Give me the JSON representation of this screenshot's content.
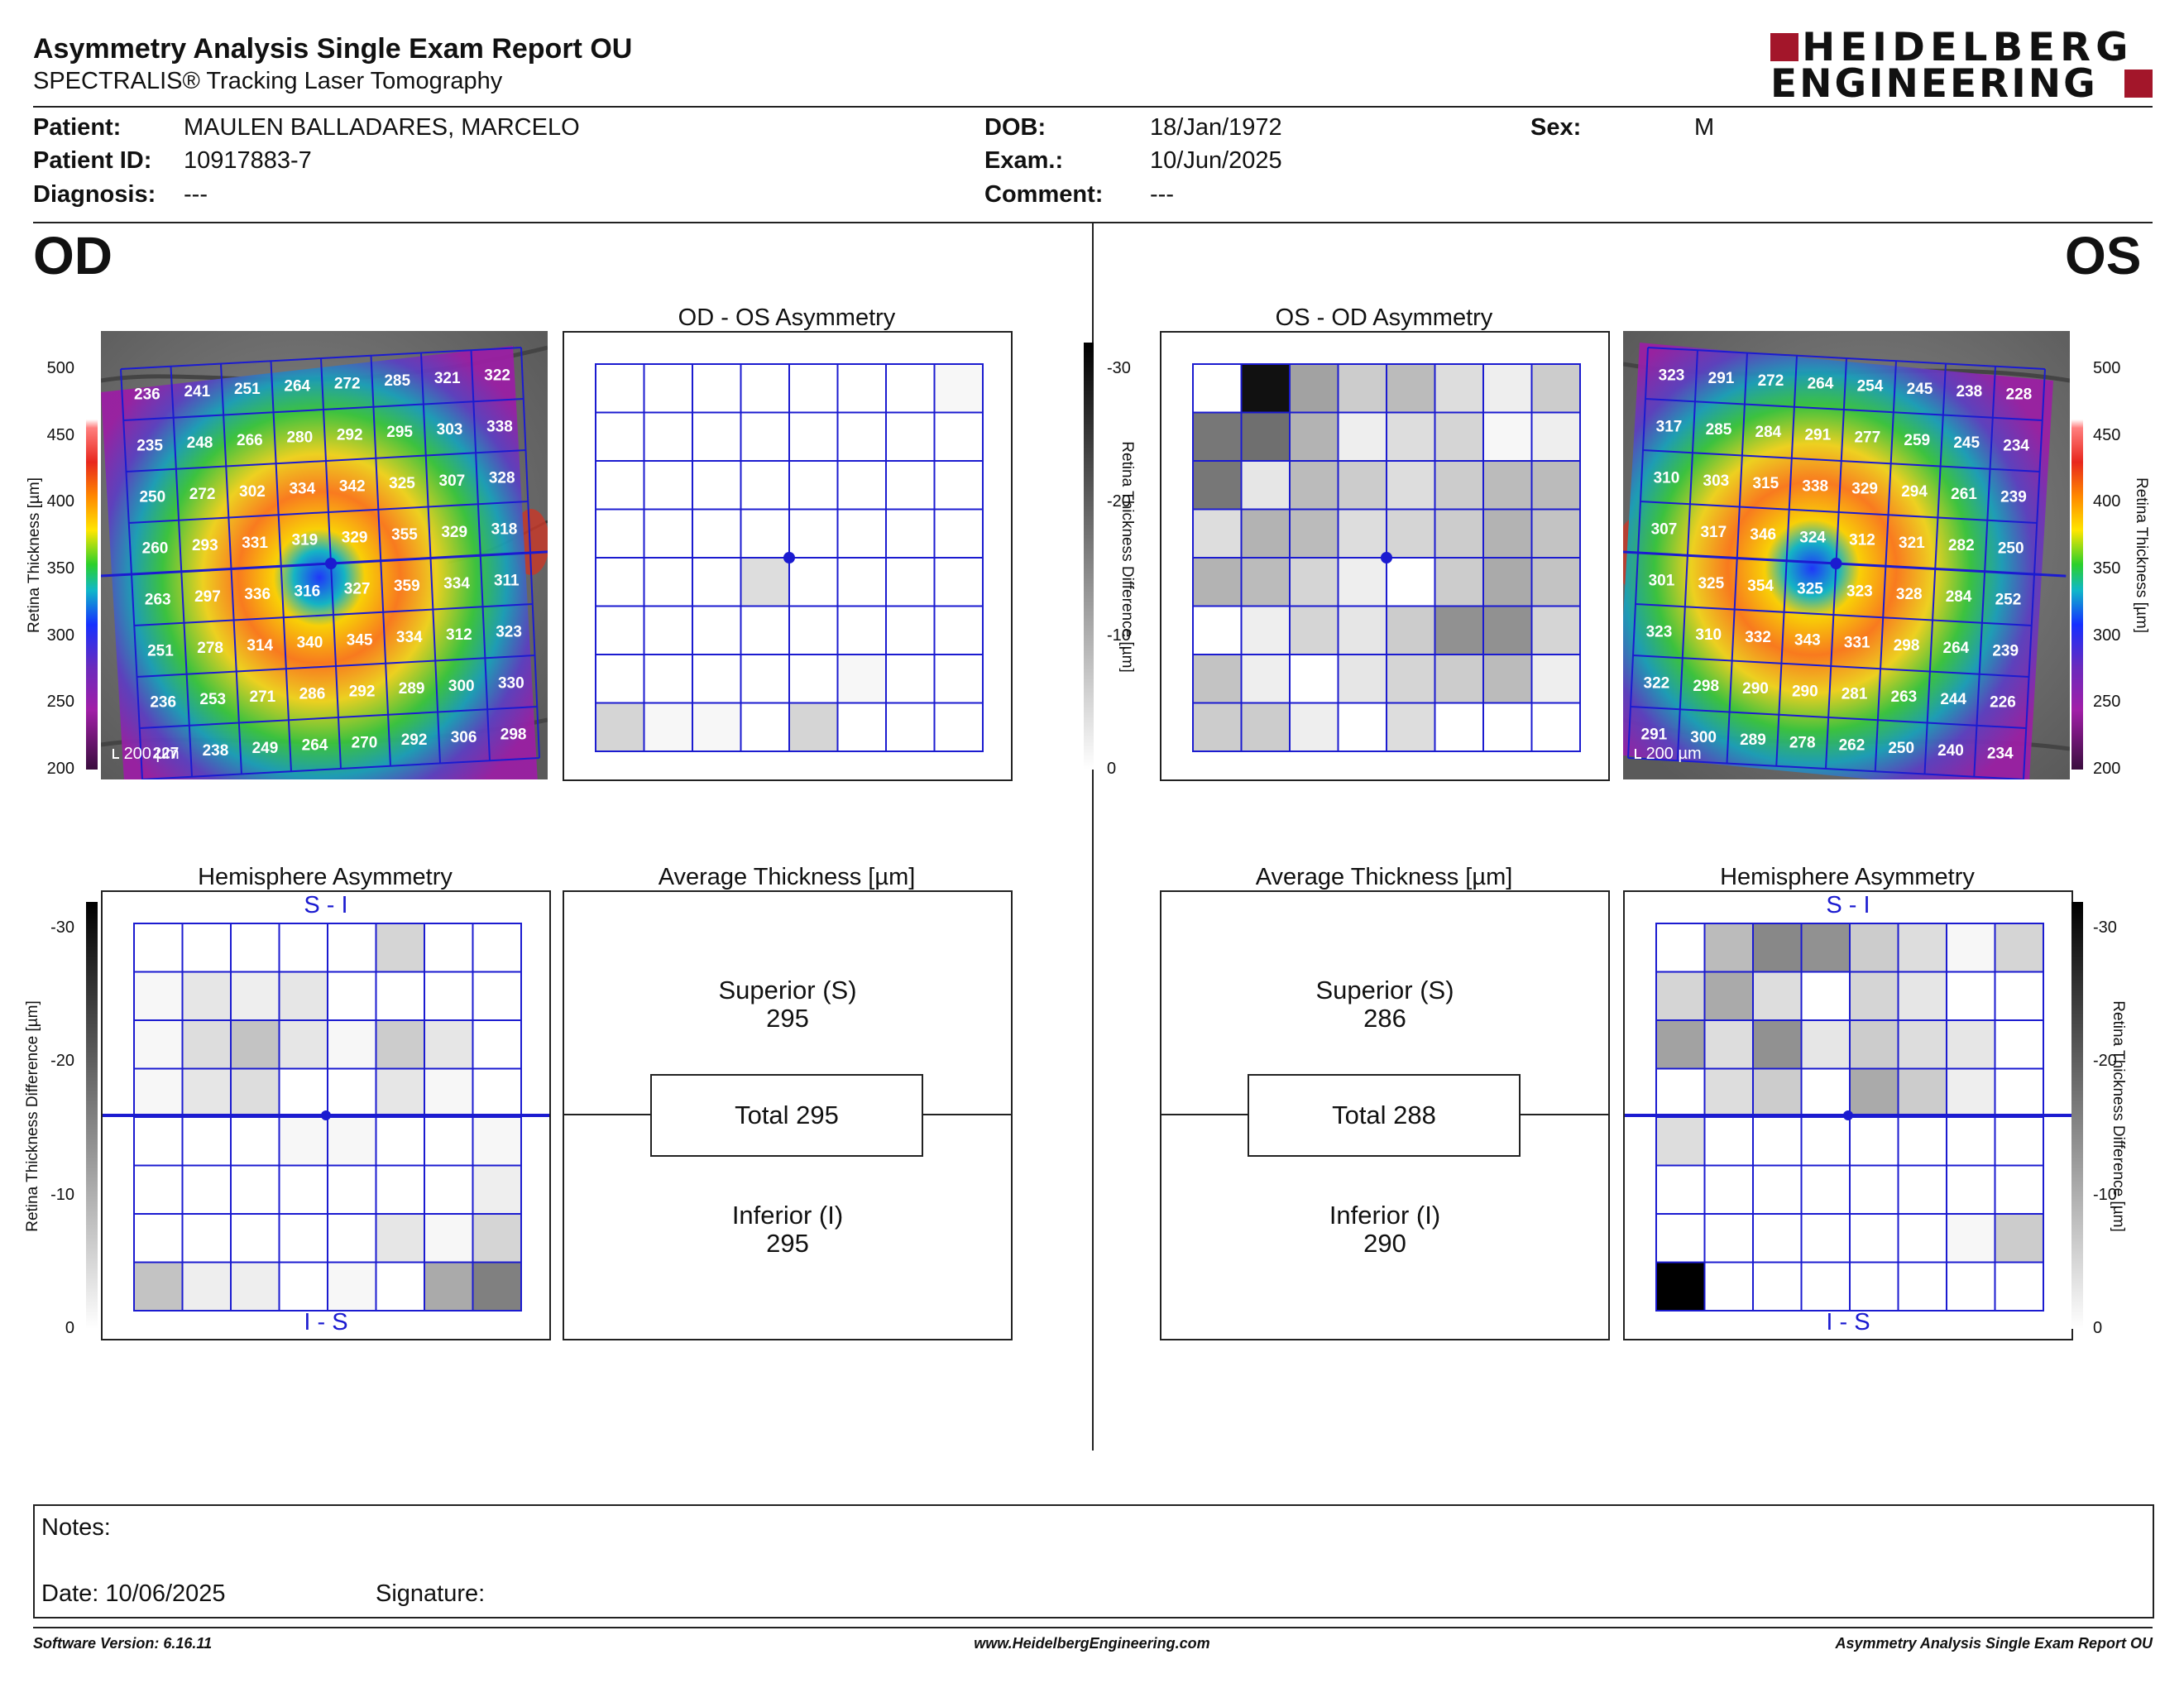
{
  "header": {
    "title": "Asymmetry Analysis Single Exam Report OU",
    "subtitle": "SPECTRALIS® Tracking Laser Tomography",
    "logo_line1": "HEIDELBERG",
    "logo_line2": "ENGINEERING",
    "brand_color": "#a3162a"
  },
  "patient": {
    "patient_label": "Patient:",
    "patient_value": "MAULEN BALLADARES, MARCELO",
    "id_label": "Patient ID:",
    "id_value": "10917883-7",
    "diagnosis_label": "Diagnosis:",
    "diagnosis_value": "---",
    "dob_label": "DOB:",
    "dob_value": "18/Jan/1972",
    "exam_label": "Exam.:",
    "exam_value": "10/Jun/2025",
    "comment_label": "Comment:",
    "comment_value": "---",
    "sex_label": "Sex:",
    "sex_value": "M"
  },
  "od": {
    "eye_label": "OD",
    "asym_title": "OD - OS Asymmetry",
    "hemi_title": "Hemisphere Asymmetry",
    "avg_title": "Average Thickness [µm]",
    "hemi_top": "S - I",
    "hemi_bottom": "I - S",
    "superior_label": "Superior (S)",
    "superior_value": "295",
    "total_label": "Total 295",
    "inferior_label": "Inferior (I)",
    "inferior_value": "295",
    "scale_bar": "200 µm",
    "thickness_grid": [
      [
        236,
        241,
        251,
        264,
        272,
        285,
        321,
        322
      ],
      [
        235,
        248,
        266,
        280,
        292,
        295,
        303,
        338
      ],
      [
        250,
        272,
        302,
        334,
        342,
        325,
        307,
        328
      ],
      [
        260,
        293,
        331,
        319,
        329,
        355,
        329,
        318
      ],
      [
        263,
        297,
        336,
        316,
        327,
        359,
        334,
        311
      ],
      [
        251,
        278,
        314,
        340,
        345,
        334,
        312,
        323
      ],
      [
        236,
        253,
        271,
        286,
        292,
        289,
        300,
        330
      ],
      [
        227,
        238,
        249,
        264,
        270,
        292,
        306,
        298
      ]
    ],
    "asym_grid": [
      [
        0,
        0,
        0,
        0,
        0,
        0,
        0,
        1
      ],
      [
        0,
        0,
        0,
        0,
        0,
        0,
        0,
        0
      ],
      [
        0,
        0,
        0,
        0,
        0,
        0,
        0,
        0
      ],
      [
        0,
        0,
        0,
        0,
        0,
        0,
        0,
        0
      ],
      [
        0,
        0,
        0,
        4,
        0,
        0,
        0,
        0
      ],
      [
        0,
        0,
        0,
        0,
        0,
        0,
        0,
        0
      ],
      [
        0,
        0,
        0,
        0,
        0,
        1,
        0,
        0
      ],
      [
        5,
        1,
        1,
        0,
        5,
        0,
        0,
        0
      ]
    ],
    "hemi_grid": [
      [
        0,
        0,
        0,
        0,
        0,
        5,
        0,
        0
      ],
      [
        1,
        3,
        2,
        3,
        0,
        0,
        0,
        0
      ],
      [
        1,
        4,
        7,
        3,
        1,
        6,
        3,
        0
      ],
      [
        1,
        3,
        4,
        0,
        0,
        3,
        1,
        0
      ],
      [
        0,
        0,
        0,
        1,
        1,
        0,
        0,
        1
      ],
      [
        0,
        0,
        0,
        0,
        0,
        0,
        0,
        2
      ],
      [
        0,
        0,
        0,
        0,
        0,
        3,
        1,
        5
      ],
      [
        7,
        2,
        2,
        0,
        1,
        0,
        10,
        15
      ]
    ]
  },
  "os": {
    "eye_label": "OS",
    "asym_title": "OS - OD Asymmetry",
    "hemi_title": "Hemisphere Asymmetry",
    "avg_title": "Average Thickness [µm]",
    "hemi_top": "S - I",
    "hemi_bottom": "I - S",
    "superior_label": "Superior (S)",
    "superior_value": "286",
    "total_label": "Total 288",
    "inferior_label": "Inferior (I)",
    "inferior_value": "290",
    "scale_bar": "200 µm",
    "thickness_grid": [
      [
        323,
        291,
        272,
        264,
        254,
        245,
        238,
        228
      ],
      [
        317,
        285,
        284,
        291,
        277,
        259,
        245,
        234
      ],
      [
        310,
        303,
        315,
        338,
        329,
        294,
        261,
        239
      ],
      [
        307,
        317,
        346,
        324,
        312,
        321,
        282,
        250
      ],
      [
        301,
        325,
        354,
        325,
        323,
        328,
        284,
        252
      ],
      [
        323,
        310,
        332,
        343,
        331,
        298,
        264,
        239
      ],
      [
        322,
        298,
        290,
        290,
        281,
        263,
        244,
        226
      ],
      [
        291,
        300,
        289,
        278,
        262,
        250,
        240,
        234
      ]
    ],
    "asym_grid": [
      [
        0,
        28,
        11,
        6,
        8,
        4,
        2,
        6
      ],
      [
        16,
        17,
        9,
        2,
        4,
        5,
        1,
        2
      ],
      [
        16,
        3,
        8,
        6,
        4,
        6,
        8,
        8
      ],
      [
        4,
        9,
        8,
        4,
        5,
        6,
        9,
        7
      ],
      [
        9,
        8,
        5,
        2,
        0,
        6,
        10,
        7
      ],
      [
        0,
        2,
        5,
        3,
        6,
        13,
        13,
        5
      ],
      [
        7,
        2,
        0,
        3,
        5,
        6,
        8,
        2
      ],
      [
        6,
        6,
        2,
        0,
        4,
        0,
        0,
        0
      ]
    ],
    "hemi_grid": [
      [
        0,
        8,
        14,
        13,
        6,
        4,
        1,
        5
      ],
      [
        5,
        10,
        4,
        0,
        5,
        3,
        0,
        0
      ],
      [
        11,
        4,
        13,
        3,
        6,
        4,
        3,
        0
      ],
      [
        0,
        4,
        6,
        0,
        10,
        6,
        2,
        0
      ],
      [
        4,
        0,
        0,
        0,
        0,
        0,
        0,
        0
      ],
      [
        0,
        0,
        0,
        0,
        0,
        0,
        0,
        0
      ],
      [
        0,
        0,
        0,
        0,
        0,
        0,
        1,
        6
      ],
      [
        30,
        0,
        0,
        0,
        0,
        0,
        0,
        0
      ]
    ]
  },
  "scales": {
    "thickness_title": "Retina Thickness [µm]",
    "thickness_ticks": [
      "500",
      "450",
      "400",
      "350",
      "300",
      "250",
      "200"
    ],
    "diff_title": "Retina Thickness Difference [µm]",
    "diff_ticks": [
      "-30",
      "-20",
      "-10",
      "0"
    ]
  },
  "notes": {
    "notes_label": "Notes:",
    "date_label": "Date: 10/06/2025",
    "signature_label": "Signature:"
  },
  "footer": {
    "software": "Software Version: 6.16.11",
    "website": "www.HeidelbergEngineering.com",
    "report_name": "Asymmetry Analysis Single Exam Report OU"
  }
}
